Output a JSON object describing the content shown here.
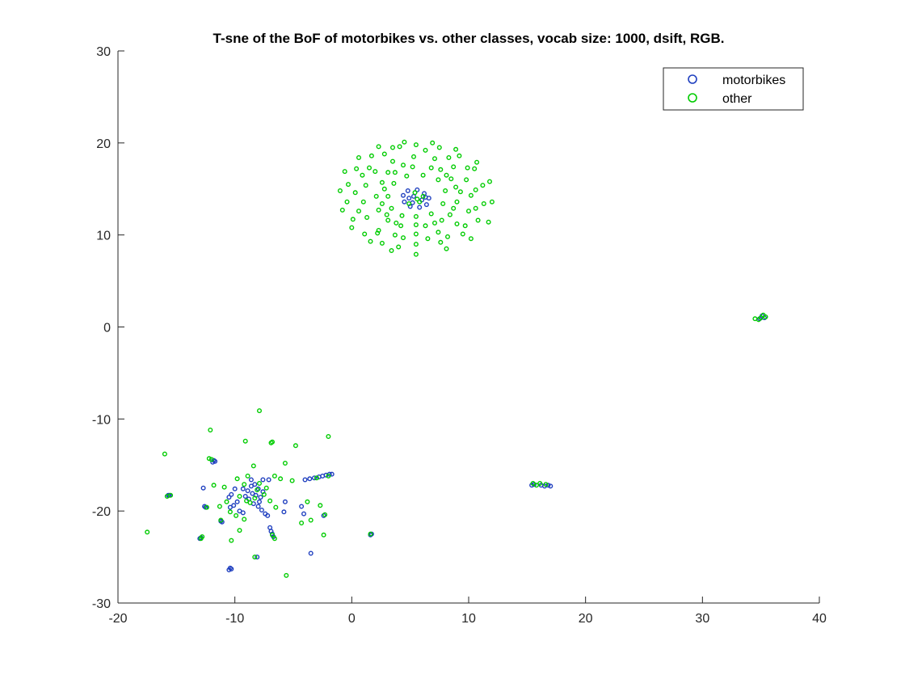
{
  "chart_data": {
    "type": "scatter",
    "title": "T-sne of the BoF of motorbikes vs. other classes, vocab size: 1000, dsift, RGB.",
    "xlabel": "",
    "ylabel": "",
    "xlim": [
      -20,
      40
    ],
    "ylim": [
      -30,
      30
    ],
    "xticks": [
      "-20",
      "-10",
      "0",
      "10",
      "20",
      "30",
      "40"
    ],
    "yticks": [
      "-30",
      "-20",
      "-10",
      "0",
      "10",
      "20",
      "30"
    ],
    "grid": false,
    "legend_position": "top-right",
    "series": [
      {
        "name": "motorbikes",
        "color": "#1f3fbf",
        "points": [
          [
            4.8,
            14.8
          ],
          [
            5.6,
            14.9
          ],
          [
            6.2,
            14.5
          ],
          [
            6.6,
            14.0
          ],
          [
            6.4,
            13.3
          ],
          [
            5.8,
            13.0
          ],
          [
            5.0,
            13.1
          ],
          [
            4.5,
            13.6
          ],
          [
            4.4,
            14.3
          ],
          [
            5.3,
            14.2
          ],
          [
            6.0,
            13.8
          ],
          [
            5.2,
            13.5
          ],
          [
            4.9,
            14.0
          ],
          [
            6.3,
            14.1
          ],
          [
            35.1,
            1.2
          ],
          [
            34.9,
            0.9
          ],
          [
            35.3,
            1.0
          ],
          [
            15.4,
            -17.2
          ],
          [
            16.2,
            -17.2
          ],
          [
            16.5,
            -17.3
          ],
          [
            17.0,
            -17.3
          ],
          [
            16.8,
            -17.2
          ],
          [
            15.6,
            -17.1
          ],
          [
            -8.9,
            -17.8
          ],
          [
            -8.5,
            -18.1
          ],
          [
            -8.2,
            -18.3
          ],
          [
            -8.0,
            -17.6
          ],
          [
            -7.8,
            -18.5
          ],
          [
            -8.6,
            -17.3
          ],
          [
            -9.1,
            -18.4
          ],
          [
            -7.6,
            -17.9
          ],
          [
            -8.3,
            -17.1
          ],
          [
            -9.3,
            -17.6
          ],
          [
            -7.9,
            -19.0
          ],
          [
            -8.8,
            -18.7
          ],
          [
            -8.4,
            -19.2
          ],
          [
            -8.0,
            -19.5
          ],
          [
            -7.7,
            -19.9
          ],
          [
            -7.4,
            -20.3
          ],
          [
            -7.2,
            -20.5
          ],
          [
            -7.0,
            -21.8
          ],
          [
            -6.9,
            -22.2
          ],
          [
            -6.8,
            -22.5
          ],
          [
            -6.7,
            -22.8
          ],
          [
            -4.0,
            -16.6
          ],
          [
            -3.6,
            -16.5
          ],
          [
            -3.2,
            -16.4
          ],
          [
            -2.8,
            -16.3
          ],
          [
            -2.5,
            -16.2
          ],
          [
            -2.2,
            -16.1
          ],
          [
            -1.9,
            -16.0
          ],
          [
            -1.7,
            -16.0
          ],
          [
            -10.0,
            -17.6
          ],
          [
            -10.3,
            -18.2
          ],
          [
            -10.5,
            -18.5
          ],
          [
            -9.8,
            -19.0
          ],
          [
            -10.1,
            -19.4
          ],
          [
            -10.4,
            -19.6
          ],
          [
            -9.6,
            -20.0
          ],
          [
            -9.3,
            -20.2
          ],
          [
            -8.6,
            -16.6
          ],
          [
            -7.6,
            -16.6
          ],
          [
            -11.8,
            -14.5
          ],
          [
            -11.9,
            -14.7
          ],
          [
            -11.7,
            -14.6
          ],
          [
            -10.4,
            -26.2
          ],
          [
            -10.5,
            -26.4
          ],
          [
            -10.3,
            -26.3
          ],
          [
            -12.5,
            -19.6
          ],
          [
            -12.6,
            -19.5
          ],
          [
            -11.2,
            -21.1
          ],
          [
            -11.1,
            -21.2
          ],
          [
            -12.7,
            -17.5
          ],
          [
            -12.9,
            -22.9
          ],
          [
            -13.0,
            -23.0
          ],
          [
            -15.6,
            -18.3
          ],
          [
            -15.7,
            -18.3
          ],
          [
            -8.1,
            -25.0
          ],
          [
            -7.1,
            -16.6
          ],
          [
            -5.7,
            -19.0
          ],
          [
            -5.8,
            -20.1
          ],
          [
            -4.1,
            -20.3
          ],
          [
            -4.3,
            -19.5
          ],
          [
            -3.5,
            -24.6
          ],
          [
            -2.4,
            -20.5
          ],
          [
            1.7,
            -22.5
          ],
          [
            1.6,
            -22.6
          ]
        ]
      },
      {
        "name": "other",
        "color": "#00cc00",
        "points": [
          [
            5.5,
            12.0
          ],
          [
            6.8,
            12.3
          ],
          [
            7.8,
            13.4
          ],
          [
            8.0,
            14.8
          ],
          [
            7.4,
            16.0
          ],
          [
            6.1,
            16.5
          ],
          [
            4.7,
            16.4
          ],
          [
            3.6,
            15.6
          ],
          [
            3.1,
            14.2
          ],
          [
            3.4,
            12.9
          ],
          [
            4.3,
            12.1
          ],
          [
            5.5,
            11.1
          ],
          [
            7.1,
            11.3
          ],
          [
            8.4,
            12.2
          ],
          [
            9.0,
            13.6
          ],
          [
            8.9,
            15.2
          ],
          [
            8.1,
            16.5
          ],
          [
            6.8,
            17.3
          ],
          [
            5.2,
            17.4
          ],
          [
            3.7,
            16.8
          ],
          [
            2.6,
            15.7
          ],
          [
            2.1,
            14.2
          ],
          [
            2.3,
            12.7
          ],
          [
            3.1,
            11.6
          ],
          [
            4.2,
            11.0
          ],
          [
            5.5,
            10.1
          ],
          [
            7.4,
            10.3
          ],
          [
            9.0,
            11.2
          ],
          [
            10.0,
            12.6
          ],
          [
            10.2,
            14.3
          ],
          [
            9.8,
            16.0
          ],
          [
            8.7,
            17.4
          ],
          [
            7.1,
            18.3
          ],
          [
            5.3,
            18.5
          ],
          [
            3.5,
            18.0
          ],
          [
            2.0,
            16.9
          ],
          [
            1.2,
            15.4
          ],
          [
            1.0,
            13.6
          ],
          [
            1.3,
            11.9
          ],
          [
            2.3,
            10.5
          ],
          [
            3.7,
            10.0
          ],
          [
            5.5,
            9.0
          ],
          [
            7.6,
            9.2
          ],
          [
            9.5,
            10.1
          ],
          [
            10.8,
            11.6
          ],
          [
            11.3,
            13.4
          ],
          [
            11.2,
            15.4
          ],
          [
            10.5,
            17.2
          ],
          [
            9.2,
            18.6
          ],
          [
            7.5,
            19.5
          ],
          [
            5.5,
            19.8
          ],
          [
            3.5,
            19.5
          ],
          [
            1.7,
            18.6
          ],
          [
            0.4,
            17.2
          ],
          [
            -0.3,
            15.5
          ],
          [
            -0.4,
            13.6
          ],
          [
            0.1,
            11.7
          ],
          [
            1.1,
            10.1
          ],
          [
            2.6,
            9.1
          ],
          [
            4.0,
            8.7
          ],
          [
            5.5,
            7.9
          ],
          [
            8.1,
            8.5
          ],
          [
            10.2,
            9.6
          ],
          [
            11.7,
            11.4
          ],
          [
            12.0,
            13.6
          ],
          [
            11.8,
            15.8
          ],
          [
            10.7,
            17.9
          ],
          [
            8.9,
            19.3
          ],
          [
            6.9,
            20.0
          ],
          [
            4.5,
            20.1
          ],
          [
            2.3,
            19.6
          ],
          [
            0.6,
            18.4
          ],
          [
            -0.6,
            16.9
          ],
          [
            -1.0,
            14.8
          ],
          [
            -0.8,
            12.7
          ],
          [
            0.0,
            10.8
          ],
          [
            1.6,
            9.3
          ],
          [
            3.4,
            8.3
          ],
          [
            1.5,
            17.3
          ],
          [
            2.8,
            18.8
          ],
          [
            4.1,
            19.6
          ],
          [
            6.3,
            19.2
          ],
          [
            8.3,
            18.4
          ],
          [
            9.9,
            17.3
          ],
          [
            10.6,
            14.9
          ],
          [
            10.6,
            12.9
          ],
          [
            9.7,
            11.0
          ],
          [
            8.2,
            9.8
          ],
          [
            6.5,
            9.6
          ],
          [
            4.4,
            9.7
          ],
          [
            2.2,
            10.2
          ],
          [
            0.6,
            12.6
          ],
          [
            0.3,
            14.6
          ],
          [
            0.9,
            16.5
          ],
          [
            3.0,
            12.2
          ],
          [
            2.6,
            13.4
          ],
          [
            3.8,
            11.3
          ],
          [
            6.3,
            11.0
          ],
          [
            7.7,
            11.6
          ],
          [
            8.7,
            12.9
          ],
          [
            9.3,
            14.7
          ],
          [
            8.5,
            16.1
          ],
          [
            7.6,
            17.1
          ],
          [
            4.4,
            17.6
          ],
          [
            3.1,
            16.8
          ],
          [
            2.8,
            15.0
          ],
          [
            5.4,
            14.6
          ],
          [
            6.1,
            14.2
          ],
          [
            5.8,
            13.6
          ],
          [
            4.9,
            13.4
          ],
          [
            5.6,
            13.9
          ],
          [
            35.0,
            1.0
          ],
          [
            34.5,
            0.9
          ],
          [
            35.2,
            1.3
          ],
          [
            35.4,
            1.1
          ],
          [
            34.8,
            0.8
          ],
          [
            15.5,
            -17.0
          ],
          [
            15.8,
            -17.2
          ],
          [
            16.1,
            -17.0
          ],
          [
            16.6,
            -17.1
          ],
          [
            -7.9,
            -9.1
          ],
          [
            -12.1,
            -11.2
          ],
          [
            -9.1,
            -12.4
          ],
          [
            -6.9,
            -12.6
          ],
          [
            -6.8,
            -12.5
          ],
          [
            -4.8,
            -12.9
          ],
          [
            -2.0,
            -11.9
          ],
          [
            -16.0,
            -13.8
          ],
          [
            -17.5,
            -22.3
          ],
          [
            -12.0,
            -14.4
          ],
          [
            -12.2,
            -14.3
          ],
          [
            -5.7,
            -14.8
          ],
          [
            -8.4,
            -15.1
          ],
          [
            -8.9,
            -16.2
          ],
          [
            -9.8,
            -16.5
          ],
          [
            -6.6,
            -16.2
          ],
          [
            -6.1,
            -16.5
          ],
          [
            -5.1,
            -16.7
          ],
          [
            -11.8,
            -17.2
          ],
          [
            -10.9,
            -17.4
          ],
          [
            -9.2,
            -17.1
          ],
          [
            -9.6,
            -18.4
          ],
          [
            -9.0,
            -18.9
          ],
          [
            -8.7,
            -19.1
          ],
          [
            -8.3,
            -18.6
          ],
          [
            -7.5,
            -18.2
          ],
          [
            -7.0,
            -18.9
          ],
          [
            -6.5,
            -19.6
          ],
          [
            -10.7,
            -19.0
          ],
          [
            -10.4,
            -20.1
          ],
          [
            -9.9,
            -20.5
          ],
          [
            -9.2,
            -20.9
          ],
          [
            -11.3,
            -19.5
          ],
          [
            -7.9,
            -17.0
          ],
          [
            -8.1,
            -17.7
          ],
          [
            -7.3,
            -17.5
          ],
          [
            -6.8,
            -22.6
          ],
          [
            -6.6,
            -23.0
          ],
          [
            -9.6,
            -22.1
          ],
          [
            -12.8,
            -22.8
          ],
          [
            -12.4,
            -19.6
          ],
          [
            -15.5,
            -18.3
          ],
          [
            -10.3,
            -23.2
          ],
          [
            -2.4,
            -22.6
          ],
          [
            -3.5,
            -21.0
          ],
          [
            -2.7,
            -19.4
          ],
          [
            -2.3,
            -20.4
          ],
          [
            -5.6,
            -27.0
          ],
          [
            -8.3,
            -25.0
          ],
          [
            -4.3,
            -21.3
          ],
          [
            -3.8,
            -19.0
          ],
          [
            -2.0,
            -16.2
          ],
          [
            -3.0,
            -16.4
          ],
          [
            1.6,
            -22.5
          ],
          [
            -11.2,
            -21.0
          ],
          [
            -12.9,
            -23.0
          ],
          [
            -15.8,
            -18.4
          ]
        ]
      }
    ]
  }
}
